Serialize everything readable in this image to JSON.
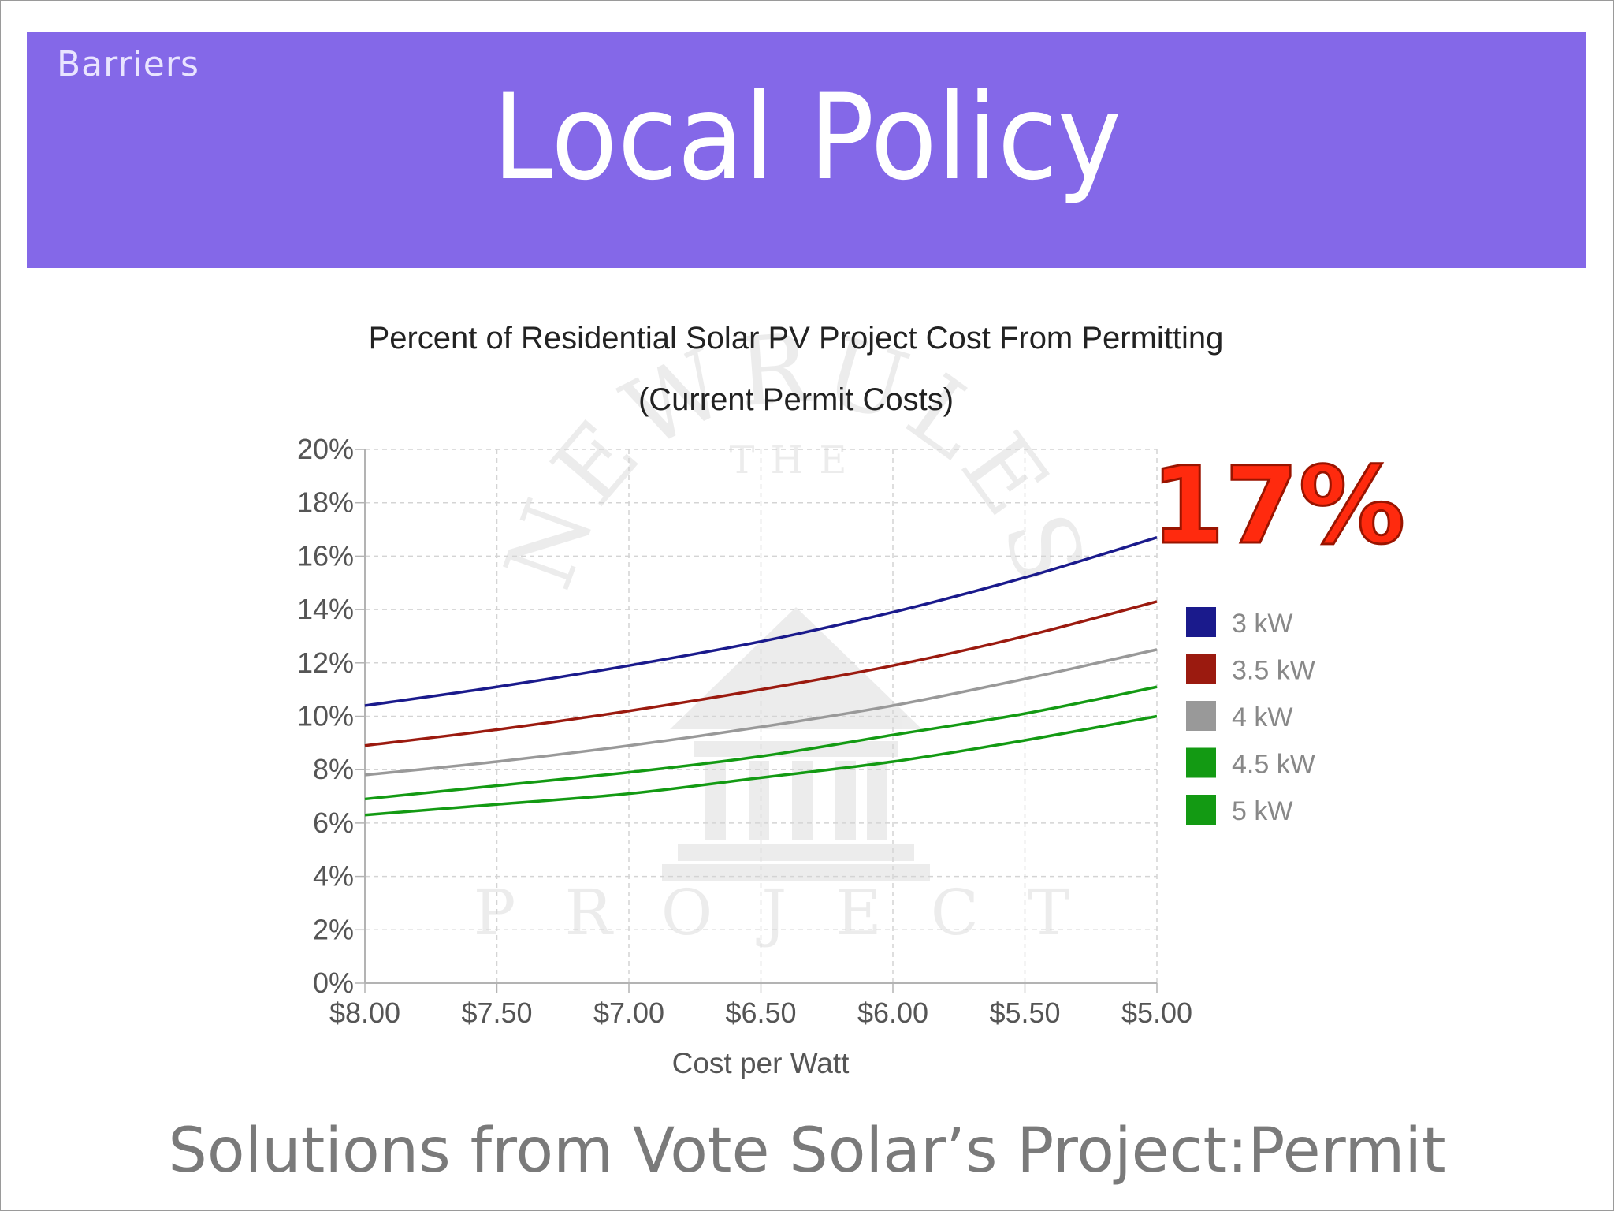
{
  "slide": {
    "section": "Barriers",
    "title": "Local Policy",
    "footer": "Solutions from Vote Solar’s Project:Permit"
  },
  "callout": "17%",
  "watermark": {
    "arc_text": "NEWRULES",
    "top_text": "THE",
    "bottom_text": "PROJECT"
  },
  "colors": {
    "header_band": "#8468e8",
    "callout": "#ff2a0e",
    "grid": "#d4d4d4",
    "axis": "#b3b3b3"
  },
  "chart_data": {
    "type": "line",
    "title": "Percent of Residential Solar PV Project Cost From Permitting",
    "subtitle": "(Current Permit Costs)",
    "xlabel": "Cost per Watt",
    "ylabel": "",
    "x_tick_labels": [
      "$8.00",
      "$7.50",
      "$7.00",
      "$6.50",
      "$6.00",
      "$5.50",
      "$5.00"
    ],
    "x_values": [
      8.0,
      7.5,
      7.0,
      6.5,
      6.0,
      5.5,
      5.0
    ],
    "xlim": [
      8.0,
      5.0
    ],
    "y_tick_labels": [
      "0%",
      "2%",
      "4%",
      "6%",
      "8%",
      "10%",
      "12%",
      "14%",
      "16%",
      "18%",
      "20%"
    ],
    "ylim": [
      0,
      20
    ],
    "grid": true,
    "legend_position": "right",
    "series": [
      {
        "name": "3 kW",
        "color": "#1a1a8c",
        "values": [
          10.4,
          11.1,
          11.9,
          12.8,
          13.9,
          15.2,
          16.7
        ]
      },
      {
        "name": "3.5 kW",
        "color": "#9b1a0f",
        "values": [
          8.9,
          9.5,
          10.2,
          11.0,
          11.9,
          13.0,
          14.3
        ]
      },
      {
        "name": "4 kW",
        "color": "#999999",
        "values": [
          7.8,
          8.3,
          8.9,
          9.6,
          10.4,
          11.4,
          12.5
        ]
      },
      {
        "name": "4.5 kW",
        "color": "#139a13",
        "values": [
          6.9,
          7.4,
          7.9,
          8.5,
          9.3,
          10.1,
          11.1
        ]
      },
      {
        "name": "5 kW",
        "color": "#139a13",
        "values": [
          6.3,
          6.7,
          7.1,
          7.7,
          8.3,
          9.1,
          10.0
        ]
      }
    ]
  }
}
